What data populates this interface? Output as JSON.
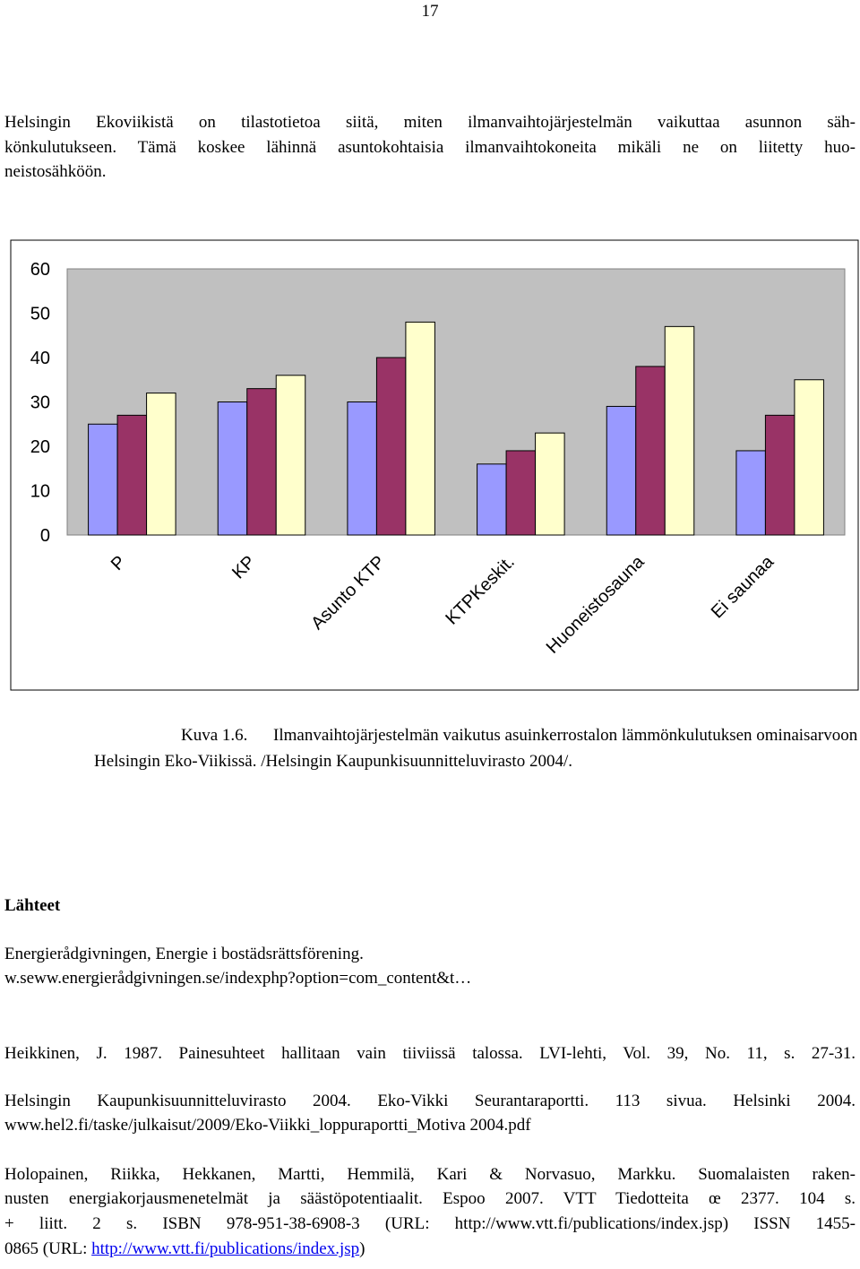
{
  "page_number": "17",
  "paragraph": {
    "lines": [
      "Helsingin Ekoviikistä on tilastotietoa siitä, miten ilmanvaihtojärjestelmän vaikuttaa asunnon säh-",
      "könkulutukseen. Tämä koskee lähinnä asuntokohtaisia ilmanvaihtokoneita mikäli ne on liitetty huo-",
      "neistosähköön."
    ]
  },
  "chart_data": {
    "type": "bar",
    "categories": [
      "P",
      "KP",
      "Asunto KTP",
      "KTPKeskit.",
      "Huoneistosauna",
      "Ei saunaa"
    ],
    "series": [
      {
        "color": "#9999ff",
        "values": [
          25,
          30,
          30,
          16,
          29,
          19
        ]
      },
      {
        "color": "#993366",
        "values": [
          27,
          33,
          40,
          19,
          38,
          27
        ]
      },
      {
        "color": "#ffffcc",
        "values": [
          32,
          36,
          48,
          23,
          47,
          35
        ]
      }
    ],
    "ylim": [
      0,
      60
    ],
    "yticks": [
      0,
      10,
      20,
      30,
      40,
      50,
      60
    ],
    "plot_background": "#c0c0c0"
  },
  "caption": {
    "label": "Kuva 1.6.",
    "lines": [
      "Ilmanvaihtojärjestelmän vaikutus asuinkerrostalon lämmönkulutuksen ominaisarvoon",
      "Helsingin Eko-Viikissä. /Helsingin Kaupunkisuunnitteluvirasto 2004/."
    ]
  },
  "references": {
    "heading": "Lähteet",
    "items": [
      {
        "lines": [
          "Energierådgivningen, Energie i bostädsrättsförening.",
          "w.seww.energierådgivningen.se/indexphp?option=com_content&t…"
        ]
      },
      {
        "lines": [
          "Heikkinen, J. 1987. Painesuhteet hallitaan vain tiiviissä talossa. LVI-lehti, Vol. 39, No. 11, s. 27-31."
        ]
      },
      {
        "lines": [
          "Helsingin Kaupunkisuunnitteluvirasto 2004. Eko-Vikki Seurantaraportti. 113 sivua. Helsinki 2004.",
          "www.hel2.fi/taske/julkaisut/2009/Eko-Viikki_loppuraportti_Motiva 2004.pdf"
        ]
      },
      {
        "lines": [
          "Holopainen, Riikka, Hekkanen, Martti, Hemmilä, Kari & Norvasuo, Markku. Suomalaisten raken-",
          "nusten energiakorjausmenetelmät ja säästöpotentiaalit. Espoo 2007. VTT Tiedotteita œ 2377. 104 s.",
          "+ liitt. 2 s. ISBN 978-951-38-6908-3 (URL:  http://www.vtt.fi/publications/index.jsp)  ISSN 1455-",
          "0865 (URL: "
        ],
        "link": "http://www.vtt.fi/publications/index.jsp",
        "after": ")"
      }
    ]
  }
}
